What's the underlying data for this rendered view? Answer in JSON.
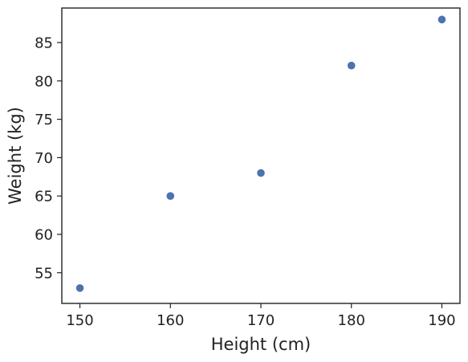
{
  "chart_data": {
    "type": "scatter",
    "title": "",
    "xlabel": "Height (cm)",
    "ylabel": "Weight (kg)",
    "x": [
      150,
      160,
      170,
      180,
      190
    ],
    "y": [
      53,
      65,
      68,
      82,
      88
    ],
    "xlim": [
      148,
      192
    ],
    "ylim": [
      51,
      89.5
    ],
    "xticks": [
      150,
      160,
      170,
      180,
      190
    ],
    "yticks": [
      55,
      60,
      65,
      70,
      75,
      80,
      85
    ],
    "grid": false,
    "legend": "none",
    "colors": {
      "marker": "#4c72b0",
      "axes": "#222222",
      "background": "#ffffff"
    }
  }
}
